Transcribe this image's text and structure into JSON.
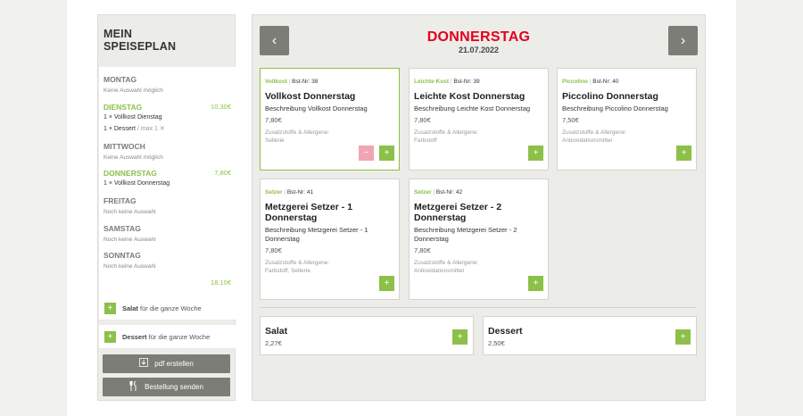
{
  "sidebar": {
    "title_line1": "MEIN",
    "title_line2": "SPEISEPLAN",
    "days": [
      {
        "name": "MONTAG",
        "sub": "Keine Auswahl möglich"
      },
      {
        "name": "DIENSTAG",
        "price": "10,30€",
        "item1": "1 × Vollkost Dienstag",
        "item2_main": "1 × Dessert",
        "item2_max": "/ max 1",
        "item2_x": "✕"
      },
      {
        "name": "MITTWOCH",
        "sub": "Keine Auswahl möglich"
      },
      {
        "name": "DONNERSTAG",
        "price": "7,80€",
        "item1": "1 × Vollkost Donnerstag"
      },
      {
        "name": "FREITAG",
        "sub": "Noch keine Auswahl"
      },
      {
        "name": "SAMSTAG",
        "sub": "Noch keine Auswahl"
      },
      {
        "name": "SONNTAG",
        "sub": "Noch keine Auswahl"
      }
    ],
    "total": "18,10€",
    "extras": [
      {
        "name": "Salat",
        "suffix": "für die ganze Woche",
        "icon": "+"
      },
      {
        "name": "Dessert",
        "suffix": "für die ganze Woche",
        "icon": "+"
      }
    ],
    "pdf_label": "pdf erstellen",
    "send_label": "Bestellung senden"
  },
  "header": {
    "prev": "‹",
    "next": "›",
    "day": "DONNERSTAG",
    "date": "21.07.2022"
  },
  "menu_cards": [
    {
      "category": "Vollkost",
      "sep": "|",
      "order_no": "Bst-Nr: 38",
      "title": "Vollkost Donnerstag",
      "desc": "Beschreibung Vollkost Donnerstag",
      "price": "7,80€",
      "allergen_label": "Zusatzstoffe & Allergene:",
      "allergens": "Sellerie",
      "plus": "+",
      "minus": "−"
    },
    {
      "category": "Leichte Kost",
      "sep": "|",
      "order_no": "Bst-Nr: 39",
      "title": "Leichte Kost Donnerstag",
      "desc": "Beschreibung Leichte Kost Donnerstag",
      "price": "7,80€",
      "allergen_label": "Zusatzstoffe & Allergene:",
      "allergens": "Farbstoff",
      "plus": "+"
    },
    {
      "category": "Piccolino",
      "sep": "|",
      "order_no": "Bst-Nr: 40",
      "title": "Piccolino Donnerstag",
      "desc": "Beschreibung Piccolino Donnerstag",
      "price": "7,50€",
      "allergen_label": "Zusatzstoffe & Allergene:",
      "allergens": "Antioxidationsmittel",
      "plus": "+"
    },
    {
      "category": "Setzer",
      "sep": "|",
      "order_no": "Bst-Nr: 41",
      "title_l1": "Metzgerei Setzer - 1",
      "title_l2": "Donnerstag",
      "desc_l1": "Beschreibung Metzgerei Setzer - 1",
      "desc_l2": "Donnerstag",
      "price": "7,80€",
      "allergen_label": "Zusatzstoffe & Allergene:",
      "allergens": "Farbstoff, Sellerie",
      "plus": "+"
    },
    {
      "category": "Setzer",
      "sep": "|",
      "order_no": "Bst-Nr: 42",
      "title_l1": "Metzgerei Setzer - 2",
      "title_l2": "Donnerstag",
      "desc_l1": "Beschreibung Metzgerei Setzer - 2",
      "desc_l2": "Donnerstag",
      "price": "7,80€",
      "allergen_label": "Zusatzstoffe & Allergene:",
      "allergens": "Antioxidationsmittel",
      "plus": "+"
    }
  ],
  "extras_cards": [
    {
      "title": "Salat",
      "price": "2,27€",
      "plus": "+"
    },
    {
      "title": "Dessert",
      "price": "2,50€",
      "plus": "+"
    }
  ],
  "colors": {
    "accent": "#8cc049",
    "brand_red": "#e3001b",
    "button_grey": "#7d7d77",
    "minus_pink": "#f0a5b2"
  },
  "icons": {
    "pdf": "download-icon",
    "send": "cutlery-icon"
  }
}
